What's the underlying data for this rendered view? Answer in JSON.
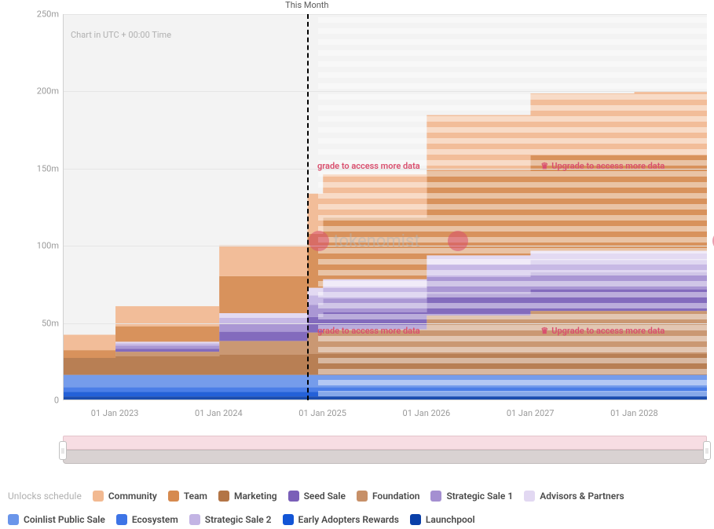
{
  "chart": {
    "type": "area-stacked",
    "background_color": "#f3f3f3",
    "grid_color": "#e5e5e5",
    "axis_label_color": "#9a9a9a",
    "axis_fontsize": 11,
    "utc_note": "Chart in UTC + 00:00 Time",
    "this_month_label": "This Month",
    "ylim": [
      0,
      250000000
    ],
    "ytick_step": 50000000,
    "yticks": [
      {
        "v": 0,
        "label": "0"
      },
      {
        "v": 50000000,
        "label": "50m"
      },
      {
        "v": 100000000,
        "label": "100m"
      },
      {
        "v": 150000000,
        "label": "150m"
      },
      {
        "v": 200000000,
        "label": "200m"
      },
      {
        "v": 250000000,
        "label": "250m"
      }
    ],
    "x_domain_years": [
      2022.5,
      2028.7
    ],
    "xticks": [
      {
        "year": 2023.0,
        "label": "01 Jan 2023"
      },
      {
        "year": 2024.0,
        "label": "01 Jan 2024"
      },
      {
        "year": 2025.0,
        "label": "01 Jan 2025"
      },
      {
        "year": 2026.0,
        "label": "01 Jan 2026"
      },
      {
        "year": 2027.0,
        "label": "01 Jan 2027"
      },
      {
        "year": 2028.0,
        "label": "01 Jan 2028"
      }
    ],
    "this_month_year": 2024.85,
    "overlay_start_year": 2024.95,
    "series": [
      {
        "key": "launchpool",
        "label": "Launchpool",
        "color": "#0a3fa8",
        "points": [
          {
            "year": 2022.5,
            "v": 2.0
          },
          {
            "year": 2023.0,
            "v": 2.0
          },
          {
            "year": 2024.0,
            "v": 2.0
          },
          {
            "year": 2025.0,
            "v": 2.0
          },
          {
            "year": 2026.0,
            "v": 2.0
          },
          {
            "year": 2027.0,
            "v": 2.0
          },
          {
            "year": 2028.0,
            "v": 2.0
          },
          {
            "year": 2028.7,
            "v": 2.0
          }
        ]
      },
      {
        "key": "early_adopters",
        "label": "Early Adopters Rewards",
        "color": "#1255d6",
        "points": [
          {
            "year": 2022.5,
            "v": 3.0
          },
          {
            "year": 2023.0,
            "v": 3.0
          },
          {
            "year": 2024.0,
            "v": 3.0
          },
          {
            "year": 2025.0,
            "v": 3.0
          },
          {
            "year": 2026.0,
            "v": 3.0
          },
          {
            "year": 2027.0,
            "v": 3.0
          },
          {
            "year": 2028.0,
            "v": 3.0
          },
          {
            "year": 2028.7,
            "v": 3.0
          }
        ]
      },
      {
        "key": "ecosystem",
        "label": "Ecosystem",
        "color": "#3d74e6",
        "points": [
          {
            "year": 2022.5,
            "v": 3.0
          },
          {
            "year": 2023.0,
            "v": 3.0
          },
          {
            "year": 2024.0,
            "v": 3.0
          },
          {
            "year": 2025.0,
            "v": 3.0
          },
          {
            "year": 2026.0,
            "v": 3.0
          },
          {
            "year": 2027.0,
            "v": 3.0
          },
          {
            "year": 2028.0,
            "v": 3.0
          },
          {
            "year": 2028.7,
            "v": 3.0
          }
        ]
      },
      {
        "key": "coinlist",
        "label": "Coinlist Public Sale",
        "color": "#6a95ea",
        "points": [
          {
            "year": 2022.5,
            "v": 8.0
          },
          {
            "year": 2023.0,
            "v": 8.0
          },
          {
            "year": 2024.0,
            "v": 8.0
          },
          {
            "year": 2025.0,
            "v": 8.0
          },
          {
            "year": 2026.0,
            "v": 8.0
          },
          {
            "year": 2027.0,
            "v": 8.0
          },
          {
            "year": 2028.0,
            "v": 8.0
          },
          {
            "year": 2028.7,
            "v": 8.0
          }
        ]
      },
      {
        "key": "marketing",
        "label": "Marketing",
        "color": "#b37546",
        "points": [
          {
            "year": 2022.5,
            "v": 11.0
          },
          {
            "year": 2023.0,
            "v": 12.0
          },
          {
            "year": 2024.0,
            "v": 13.0
          },
          {
            "year": 2024.85,
            "v": 13.5
          },
          {
            "year": 2025.0,
            "v": 13.5
          },
          {
            "year": 2026.0,
            "v": 13.5
          },
          {
            "year": 2027.0,
            "v": 13.5
          },
          {
            "year": 2028.0,
            "v": 13.5
          },
          {
            "year": 2028.7,
            "v": 13.5
          }
        ]
      },
      {
        "key": "foundation",
        "label": "Foundation",
        "color": "#c79068",
        "points": [
          {
            "year": 2022.5,
            "v": 0.0
          },
          {
            "year": 2023.0,
            "v": 3.0
          },
          {
            "year": 2024.0,
            "v": 9.0
          },
          {
            "year": 2024.85,
            "v": 14.0
          },
          {
            "year": 2025.0,
            "v": 16.0
          },
          {
            "year": 2026.0,
            "v": 25.0
          },
          {
            "year": 2027.0,
            "v": 28.0
          },
          {
            "year": 2028.0,
            "v": 28.0
          },
          {
            "year": 2028.7,
            "v": 28.0
          }
        ]
      },
      {
        "key": "seed_sale",
        "label": "Seed Sale",
        "color": "#7a5fb8",
        "points": [
          {
            "year": 2022.5,
            "v": 0.0
          },
          {
            "year": 2023.0,
            "v": 2.0
          },
          {
            "year": 2024.0,
            "v": 6.0
          },
          {
            "year": 2024.85,
            "v": 10.0
          },
          {
            "year": 2025.0,
            "v": 11.0
          },
          {
            "year": 2026.0,
            "v": 14.0
          },
          {
            "year": 2027.0,
            "v": 14.0
          },
          {
            "year": 2028.0,
            "v": 14.0
          },
          {
            "year": 2028.7,
            "v": 14.0
          }
        ]
      },
      {
        "key": "strategic1",
        "label": "Strategic Sale 1",
        "color": "#a48fd1",
        "points": [
          {
            "year": 2022.5,
            "v": 0.0
          },
          {
            "year": 2023.0,
            "v": 2.0
          },
          {
            "year": 2024.0,
            "v": 5.0
          },
          {
            "year": 2024.85,
            "v": 8.0
          },
          {
            "year": 2025.0,
            "v": 9.0
          },
          {
            "year": 2026.0,
            "v": 11.0
          },
          {
            "year": 2027.0,
            "v": 11.0
          },
          {
            "year": 2028.0,
            "v": 11.0
          },
          {
            "year": 2028.7,
            "v": 11.0
          }
        ]
      },
      {
        "key": "strategic2",
        "label": "Strategic Sale 2",
        "color": "#c3b4e4",
        "points": [
          {
            "year": 2022.5,
            "v": 0.0
          },
          {
            "year": 2023.0,
            "v": 1.5
          },
          {
            "year": 2024.0,
            "v": 4.0
          },
          {
            "year": 2024.85,
            "v": 6.0
          },
          {
            "year": 2025.0,
            "v": 7.0
          },
          {
            "year": 2026.0,
            "v": 8.0
          },
          {
            "year": 2027.0,
            "v": 8.0
          },
          {
            "year": 2028.0,
            "v": 8.0
          },
          {
            "year": 2028.7,
            "v": 8.0
          }
        ]
      },
      {
        "key": "advisors",
        "label": "Advisors & Partners",
        "color": "#e2d8f2",
        "points": [
          {
            "year": 2022.5,
            "v": 0.0
          },
          {
            "year": 2023.0,
            "v": 1.0
          },
          {
            "year": 2024.0,
            "v": 3.0
          },
          {
            "year": 2024.85,
            "v": 5.0
          },
          {
            "year": 2025.0,
            "v": 5.5
          },
          {
            "year": 2026.0,
            "v": 6.0
          },
          {
            "year": 2027.0,
            "v": 6.0
          },
          {
            "year": 2028.0,
            "v": 6.0
          },
          {
            "year": 2028.7,
            "v": 6.0
          }
        ]
      },
      {
        "key": "team",
        "label": "Team",
        "color": "#d68a4f",
        "points": [
          {
            "year": 2022.5,
            "v": 5.0
          },
          {
            "year": 2023.0,
            "v": 10.0
          },
          {
            "year": 2024.0,
            "v": 24.0
          },
          {
            "year": 2024.85,
            "v": 35.0
          },
          {
            "year": 2025.0,
            "v": 40.0
          },
          {
            "year": 2026.0,
            "v": 55.0
          },
          {
            "year": 2027.0,
            "v": 62.0
          },
          {
            "year": 2028.0,
            "v": 62.0
          },
          {
            "year": 2028.7,
            "v": 62.0
          }
        ]
      },
      {
        "key": "community",
        "label": "Community",
        "color": "#f2b991",
        "points": [
          {
            "year": 2022.5,
            "v": 10.0
          },
          {
            "year": 2023.0,
            "v": 13.0
          },
          {
            "year": 2024.0,
            "v": 20.0
          },
          {
            "year": 2024.85,
            "v": 26.0
          },
          {
            "year": 2025.0,
            "v": 28.0
          },
          {
            "year": 2026.0,
            "v": 36.0
          },
          {
            "year": 2027.0,
            "v": 40.0
          },
          {
            "year": 2028.0,
            "v": 41.0
          },
          {
            "year": 2028.7,
            "v": 41.0
          }
        ]
      }
    ],
    "watermark_text": "tokenomist",
    "watermark_positions": [
      {
        "type": "text",
        "year": 2025.4,
        "y_m": 103
      },
      {
        "type": "dot",
        "year": 2026.3,
        "y_m": 103
      },
      {
        "type": "dot",
        "year": 2028.85,
        "y_m": 103
      }
    ],
    "upgrade_text": "Upgrade to access more data",
    "upgrade_text_partial": "grade to access more data",
    "upgrade_positions": [
      {
        "partial": true,
        "year": 2024.95,
        "y_m": 152,
        "crown": false
      },
      {
        "partial": false,
        "year": 2027.1,
        "y_m": 152,
        "crown": true
      },
      {
        "partial": true,
        "year": 2024.95,
        "y_m": 45,
        "crown": false
      },
      {
        "partial": false,
        "year": 2027.1,
        "y_m": 45,
        "crown": true
      }
    ]
  },
  "scrollbar": {
    "pink_color": "#f7dde3",
    "bottom_color": "#d9d2d2",
    "handle_glyph": "||"
  },
  "legend": {
    "title": "Unlocks schedule",
    "title_color": "#b0b0b0",
    "item_color": "#4a4a4a",
    "item_fontsize": 12,
    "items": [
      {
        "label": "Community",
        "color": "#f2b991"
      },
      {
        "label": "Team",
        "color": "#d68a4f"
      },
      {
        "label": "Marketing",
        "color": "#b37546"
      },
      {
        "label": "Seed Sale",
        "color": "#7a5fb8"
      },
      {
        "label": "Foundation",
        "color": "#c79068"
      },
      {
        "label": "Strategic Sale 1",
        "color": "#a48fd1"
      },
      {
        "label": "Advisors & Partners",
        "color": "#e2d8f2"
      },
      {
        "label": "Coinlist Public Sale",
        "color": "#6a95ea"
      },
      {
        "label": "Ecosystem",
        "color": "#3d74e6"
      },
      {
        "label": "Strategic Sale 2",
        "color": "#c3b4e4"
      },
      {
        "label": "Early Adopters Rewards",
        "color": "#1255d6"
      },
      {
        "label": "Launchpool",
        "color": "#0a3fa8"
      }
    ]
  }
}
